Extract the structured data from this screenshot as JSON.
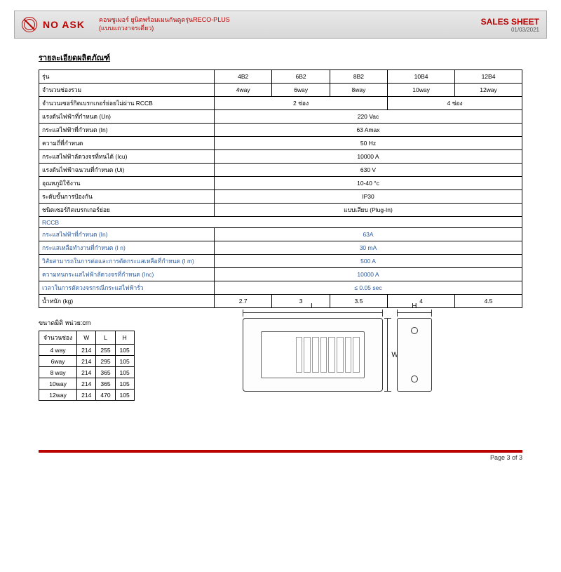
{
  "brand": "NO ASK",
  "subhead1": "คอนซูเมอร์ ยูนิตพร้อมเมนกันดูดรุ่นRECO-PLUS",
  "subhead2": "(แบบแถวงาจรเดี่ยว)",
  "sales": "SALES SHEET",
  "date": "01/03/2021",
  "title": "รายละเอียดผลิตภัณฑ์",
  "rows": {
    "r1": {
      "lbl": "รุ่น",
      "v": [
        "4B2",
        "6B2",
        "8B2",
        "10B4",
        "12B4"
      ]
    },
    "r2": {
      "lbl": "จำนวนช่องรวม",
      "v": [
        "4way",
        "6way",
        "8way",
        "10way",
        "12way"
      ]
    },
    "r3": {
      "lbl": "จำนวนเซอร์กิตเบรกเกอร์ย่อยไม่ผ่าน RCCB",
      "a": "2 ช่อง",
      "b": "4 ช่อง"
    },
    "r4": {
      "lbl": "แรงดันไฟฟ้าที่กำหนด (Un)",
      "v": "220 Vac"
    },
    "r5": {
      "lbl": "กระแสไฟฟ้าที่กำหนด  (In)",
      "v": "63 Amax"
    },
    "r6": {
      "lbl": "ความถี่ที่กำหนด",
      "v": "50 Hz"
    },
    "r7": {
      "lbl": "กระแสไฟฟ้าลัดวงจรที่ทนได้ (Icu)",
      "v": "10000 A"
    },
    "r8": {
      "lbl": "แรงดันไฟฟ้าฉนวนที่กำหนด (Ui)",
      "v": "630 V"
    },
    "r9": {
      "lbl": "อุณหภูมิใช้งาน",
      "v": "10-40 °c"
    },
    "r10": {
      "lbl": "ระดับขั้นการป้องกัน",
      "v": "IP30"
    },
    "r11": {
      "lbl": "ชนิดเซอร์กิตเบรกเกอร์ย่อย",
      "v": "แบบเสียบ (Plug-In)"
    },
    "rccb": "RCCB",
    "r12": {
      "lbl": "กระแสไฟฟ้าที่กำหนด  (In)",
      "v": "63A"
    },
    "r13": {
      "lbl": "กระแสเหลือทำงานที่กำหนด (I  n)",
      "v": "30 mA"
    },
    "r14": {
      "lbl": "วิสัยสามารถในการต่อและการตัดกระแสเหลือที่กำหนด (I  m)",
      "v": "500 A"
    },
    "r15": {
      "lbl": "ความทนกระแสไฟฟ้าลัดวงจรที่กำหนด (Inc)",
      "v": "10000 A"
    },
    "r16": {
      "lbl": "เวลาในการตัดวงจรกรณีกระแสไฟฟ้ารั่ว",
      "v": "≤  0.05 sec"
    },
    "r17": {
      "lbl": "น้ำหนัก (kg)",
      "v": [
        "2.7",
        "3",
        "3.5",
        "4",
        "4.5"
      ]
    }
  },
  "dimtitle": "ขนาดมิติ หน่วย:cm",
  "dimhead": [
    "จำนวนช่อง",
    "W",
    "L",
    "H"
  ],
  "dims": [
    [
      "4 way",
      "214",
      "255",
      "105"
    ],
    [
      "6way",
      "214",
      "295",
      "105"
    ],
    [
      "8 way",
      "214",
      "365",
      "105"
    ],
    [
      "10way",
      "214",
      "365",
      "105"
    ],
    [
      "12way",
      "214",
      "470",
      "105"
    ]
  ],
  "L": "L",
  "W": "W",
  "H": "H",
  "pagefoot": "Page 3 of 3"
}
